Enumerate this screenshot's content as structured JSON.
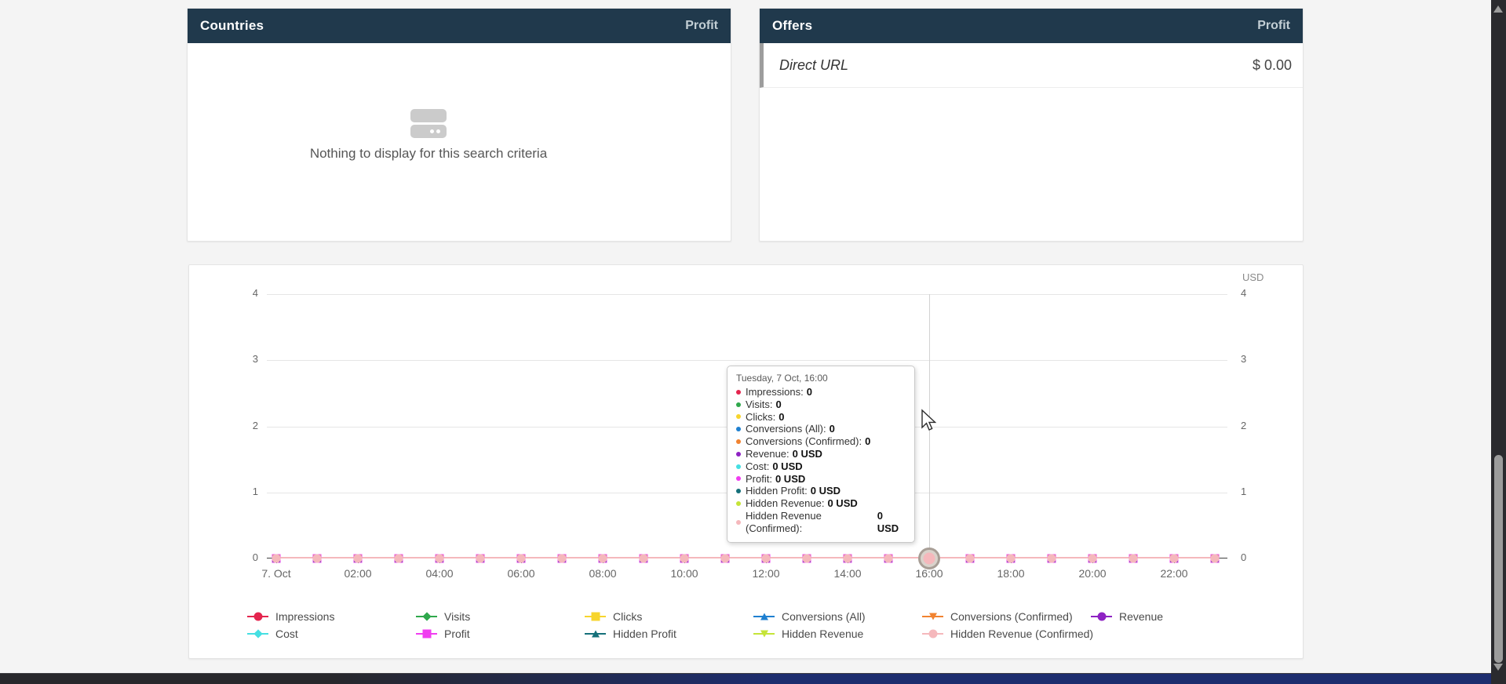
{
  "colors": {
    "panel_header_bg": "#20394c",
    "page_bg": "#f4f4f4"
  },
  "panels": {
    "countries": {
      "title": "Countries",
      "sort_column": "Profit",
      "empty_message": "Nothing to display for this search criteria"
    },
    "offers": {
      "title": "Offers",
      "sort_column": "Profit",
      "rows": [
        {
          "name": "Direct URL",
          "profit": "$ 0.00"
        }
      ]
    }
  },
  "chart": {
    "axis_unit": "USD",
    "tooltip": {
      "title": "Tuesday, 7 Oct, 16:00",
      "items": [
        {
          "label": "Impressions",
          "value": "0"
        },
        {
          "label": "Visits",
          "value": "0"
        },
        {
          "label": "Clicks",
          "value": "0"
        },
        {
          "label": "Conversions (All)",
          "value": "0"
        },
        {
          "label": "Conversions (Confirmed)",
          "value": "0"
        },
        {
          "label": "Revenue",
          "value": "0 USD"
        },
        {
          "label": "Cost",
          "value": "0 USD"
        },
        {
          "label": "Profit",
          "value": "0 USD"
        },
        {
          "label": "Hidden Profit",
          "value": "0 USD"
        },
        {
          "label": "Hidden Revenue",
          "value": "0 USD"
        },
        {
          "label": "Hidden Revenue (Confirmed)",
          "value": "0 USD"
        }
      ]
    }
  },
  "chart_data": {
    "type": "line",
    "title": "",
    "date": "Tuesday, 7 Oct",
    "x": [
      "00:00",
      "01:00",
      "02:00",
      "03:00",
      "04:00",
      "05:00",
      "06:00",
      "07:00",
      "08:00",
      "09:00",
      "10:00",
      "11:00",
      "12:00",
      "13:00",
      "14:00",
      "15:00",
      "16:00",
      "17:00",
      "18:00",
      "19:00",
      "20:00",
      "21:00",
      "22:00",
      "23:00"
    ],
    "x_tick_labels": [
      "7. Oct",
      "02:00",
      "04:00",
      "06:00",
      "08:00",
      "10:00",
      "12:00",
      "14:00",
      "16:00",
      "18:00",
      "20:00",
      "22:00"
    ],
    "ylim": [
      0,
      4
    ],
    "y_ticks": [
      0,
      1,
      2,
      3,
      4
    ],
    "y_unit": "USD",
    "grid": true,
    "legend_position": "bottom",
    "hover_index": 16,
    "series": [
      {
        "name": "Impressions",
        "color": "#e4254e",
        "marker": "circle",
        "values": [
          0,
          0,
          0,
          0,
          0,
          0,
          0,
          0,
          0,
          0,
          0,
          0,
          0,
          0,
          0,
          0,
          0,
          0,
          0,
          0,
          0,
          0,
          0,
          0
        ]
      },
      {
        "name": "Visits",
        "color": "#2fa84c",
        "marker": "diamond",
        "values": [
          0,
          0,
          0,
          0,
          0,
          0,
          0,
          0,
          0,
          0,
          0,
          0,
          0,
          0,
          0,
          0,
          0,
          0,
          0,
          0,
          0,
          0,
          0,
          0
        ]
      },
      {
        "name": "Clicks",
        "color": "#f7d52d",
        "marker": "square",
        "values": [
          0,
          0,
          0,
          0,
          0,
          0,
          0,
          0,
          0,
          0,
          0,
          0,
          0,
          0,
          0,
          0,
          0,
          0,
          0,
          0,
          0,
          0,
          0,
          0
        ]
      },
      {
        "name": "Conversions (All)",
        "color": "#1f80d0",
        "marker": "triangle-up",
        "values": [
          0,
          0,
          0,
          0,
          0,
          0,
          0,
          0,
          0,
          0,
          0,
          0,
          0,
          0,
          0,
          0,
          0,
          0,
          0,
          0,
          0,
          0,
          0,
          0
        ]
      },
      {
        "name": "Conversions (Confirmed)",
        "color": "#f18330",
        "marker": "triangle-down",
        "values": [
          0,
          0,
          0,
          0,
          0,
          0,
          0,
          0,
          0,
          0,
          0,
          0,
          0,
          0,
          0,
          0,
          0,
          0,
          0,
          0,
          0,
          0,
          0,
          0
        ]
      },
      {
        "name": "Revenue",
        "color": "#8e22c3",
        "marker": "circle",
        "values": [
          0,
          0,
          0,
          0,
          0,
          0,
          0,
          0,
          0,
          0,
          0,
          0,
          0,
          0,
          0,
          0,
          0,
          0,
          0,
          0,
          0,
          0,
          0,
          0
        ]
      },
      {
        "name": "Cost",
        "color": "#45dfe2",
        "marker": "diamond",
        "values": [
          0,
          0,
          0,
          0,
          0,
          0,
          0,
          0,
          0,
          0,
          0,
          0,
          0,
          0,
          0,
          0,
          0,
          0,
          0,
          0,
          0,
          0,
          0,
          0
        ]
      },
      {
        "name": "Profit",
        "color": "#f03df0",
        "marker": "square",
        "values": [
          0,
          0,
          0,
          0,
          0,
          0,
          0,
          0,
          0,
          0,
          0,
          0,
          0,
          0,
          0,
          0,
          0,
          0,
          0,
          0,
          0,
          0,
          0,
          0
        ]
      },
      {
        "name": "Hidden Profit",
        "color": "#15707a",
        "marker": "triangle-up",
        "values": [
          0,
          0,
          0,
          0,
          0,
          0,
          0,
          0,
          0,
          0,
          0,
          0,
          0,
          0,
          0,
          0,
          0,
          0,
          0,
          0,
          0,
          0,
          0,
          0
        ]
      },
      {
        "name": "Hidden Revenue",
        "color": "#c5e438",
        "marker": "triangle-down",
        "values": [
          0,
          0,
          0,
          0,
          0,
          0,
          0,
          0,
          0,
          0,
          0,
          0,
          0,
          0,
          0,
          0,
          0,
          0,
          0,
          0,
          0,
          0,
          0,
          0
        ]
      },
      {
        "name": "Hidden Revenue (Confirmed)",
        "color": "#f5b8bc",
        "marker": "circle",
        "values": [
          0,
          0,
          0,
          0,
          0,
          0,
          0,
          0,
          0,
          0,
          0,
          0,
          0,
          0,
          0,
          0,
          0,
          0,
          0,
          0,
          0,
          0,
          0,
          0
        ]
      }
    ]
  }
}
